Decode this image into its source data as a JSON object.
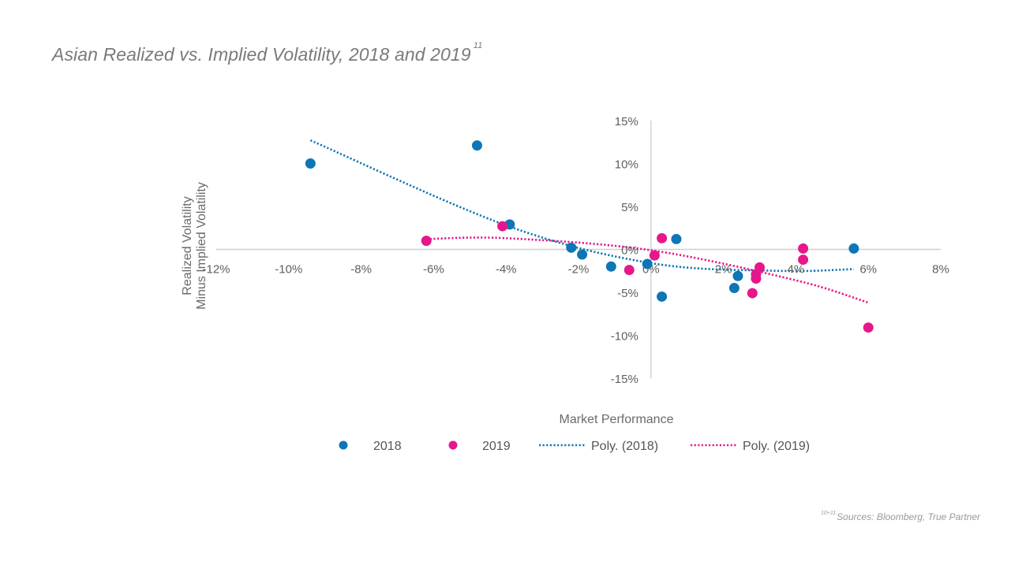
{
  "title": "Asian Realized vs. Implied Volatility, 2018 and 2019",
  "title_superscript": "11",
  "footer_superscript": "10+11",
  "footer": "Sources: Bloomberg, True Partner",
  "colors": {
    "series_2018": "#0e76b5",
    "series_2019": "#e5178a",
    "axis": "#d0d0d0"
  },
  "chart_data": {
    "type": "scatter",
    "xlabel": "Market Performance",
    "ylabel": [
      "Realized Volatility",
      "Minus Implied Volatility"
    ],
    "xlim": [
      -0.12,
      0.08
    ],
    "ylim": [
      -0.15,
      0.15
    ],
    "x_ticks": [
      -0.12,
      -0.1,
      -0.08,
      -0.06,
      -0.04,
      -0.02,
      0.0,
      0.02,
      0.04,
      0.06,
      0.08
    ],
    "x_tick_labels": [
      "-12%",
      "-10%",
      "-8%",
      "-6%",
      "-4%",
      "-2%",
      "0%",
      "2%",
      "4%",
      "6%",
      "8%"
    ],
    "y_ticks": [
      0.15,
      0.1,
      0.05,
      0.0,
      -0.05,
      -0.1,
      -0.15
    ],
    "y_tick_labels": [
      "15%",
      "10%",
      "5%",
      "0%",
      "-5%",
      "-10%",
      "-15%"
    ],
    "grid": false,
    "legend_position": "bottom",
    "series": [
      {
        "name": "2018",
        "type": "scatter",
        "color": "#0e76b5",
        "points": [
          [
            -0.094,
            0.1
          ],
          [
            -0.048,
            0.121
          ],
          [
            -0.039,
            0.029
          ],
          [
            -0.022,
            0.002
          ],
          [
            -0.019,
            -0.006
          ],
          [
            -0.011,
            -0.02
          ],
          [
            -0.001,
            -0.017
          ],
          [
            0.003,
            -0.055
          ],
          [
            0.007,
            0.012
          ],
          [
            0.023,
            -0.045
          ],
          [
            0.024,
            -0.031
          ],
          [
            0.056,
            0.001
          ]
        ]
      },
      {
        "name": "2019",
        "type": "scatter",
        "color": "#e5178a",
        "points": [
          [
            -0.062,
            0.01
          ],
          [
            -0.041,
            0.027
          ],
          [
            -0.006,
            -0.024
          ],
          [
            0.001,
            -0.007
          ],
          [
            0.003,
            0.013
          ],
          [
            0.028,
            -0.051
          ],
          [
            0.029,
            -0.034
          ],
          [
            0.029,
            -0.029
          ],
          [
            0.03,
            -0.021
          ],
          [
            0.042,
            -0.012
          ],
          [
            0.042,
            0.001
          ],
          [
            0.06,
            -0.091
          ]
        ]
      },
      {
        "name": "Poly. (2018)",
        "type": "trendline",
        "style": "dotted",
        "color": "#0e76b5",
        "degree": 2,
        "points": [
          [
            -0.094,
            0.127
          ],
          [
            -0.04,
            0.028
          ],
          [
            0.0,
            -0.016
          ],
          [
            0.035,
            -0.025
          ],
          [
            0.056,
            -0.023
          ]
        ]
      },
      {
        "name": "Poly. (2019)",
        "type": "trendline",
        "style": "dotted",
        "color": "#e5178a",
        "degree": 2,
        "points": [
          [
            -0.062,
            0.012
          ],
          [
            -0.04,
            0.013
          ],
          [
            0.0,
            -0.001
          ],
          [
            0.04,
            -0.036
          ],
          [
            0.06,
            -0.062
          ]
        ]
      }
    ]
  }
}
